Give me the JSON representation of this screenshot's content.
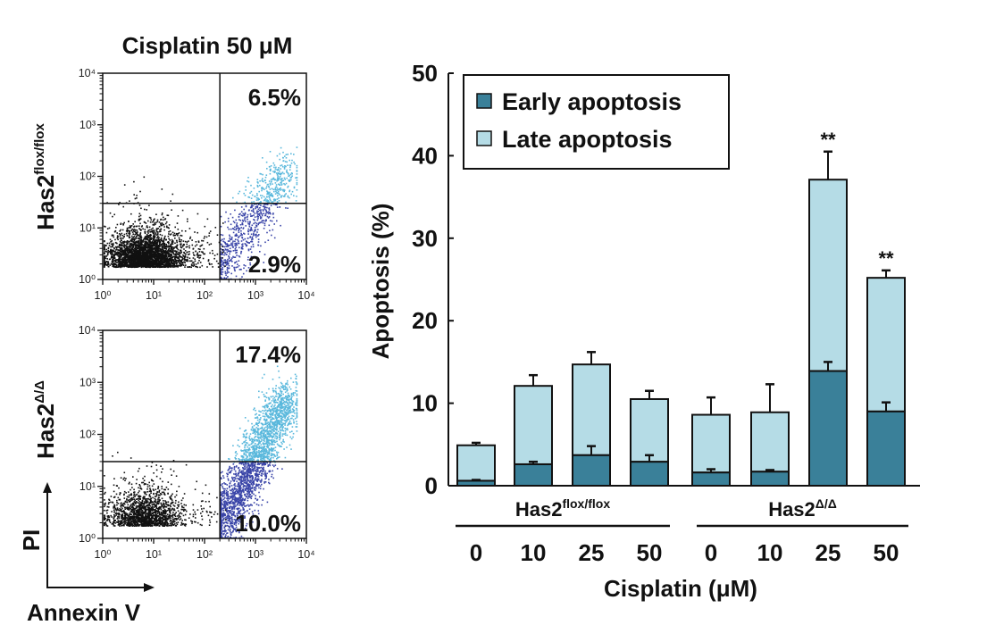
{
  "chart_data": [
    {
      "type": "scatter",
      "title": "Cisplatin 50 μM",
      "panel": "flow-cytometry",
      "xlabel": "Annexin V",
      "ylabel": "PI",
      "x_scale": "log",
      "y_scale": "log",
      "xlim": [
        1,
        10000
      ],
      "ylim": [
        1,
        10000
      ],
      "xticks": [
        "10⁰",
        "10¹",
        "10²",
        "10³",
        "10⁴"
      ],
      "yticks": [
        "10⁰",
        "10¹",
        "10²",
        "10³",
        "10⁴"
      ],
      "gate_x": 200,
      "gate_y": 30,
      "plots": [
        {
          "genotype_base": "Has2",
          "genotype_sup": "flox/flox",
          "upper_right_pct": "6.5%",
          "lower_right_pct": "2.9%",
          "spread": 0.9
        },
        {
          "genotype_base": "Has2",
          "genotype_sup": "Δ/Δ",
          "upper_right_pct": "17.4%",
          "lower_right_pct": "10.0%",
          "spread": 1.15
        }
      ],
      "colors": {
        "live": "#111111",
        "early": "#3a45a8",
        "late": "#5ab8dc"
      }
    },
    {
      "type": "bar",
      "stacked": true,
      "ylabel": "Apoptosis (%)",
      "xlabel": "Cisplatin (μM)",
      "ylim": [
        0,
        50
      ],
      "yticks": [
        0,
        10,
        20,
        30,
        40,
        50
      ],
      "legend_position": "top-left",
      "categories": [
        "0",
        "10",
        "25",
        "50",
        "0",
        "10",
        "25",
        "50"
      ],
      "groups": [
        {
          "base": "Has2",
          "sup": "flox/flox",
          "indices": [
            0,
            1,
            2,
            3
          ]
        },
        {
          "base": "Has2",
          "sup": "Δ/Δ",
          "indices": [
            4,
            5,
            6,
            7
          ]
        }
      ],
      "series": [
        {
          "name": "Early apoptosis",
          "color": "#3a8099",
          "values": [
            0.6,
            2.6,
            3.7,
            2.9,
            1.6,
            1.7,
            13.9,
            9.0
          ],
          "err": [
            0.1,
            0.3,
            1.1,
            0.8,
            0.4,
            0.2,
            1.1,
            1.1
          ]
        },
        {
          "name": "Late apoptosis",
          "color": "#b5dce6",
          "values": [
            4.3,
            9.5,
            11.0,
            7.6,
            7.0,
            7.2,
            23.2,
            16.2
          ],
          "err": [
            0.3,
            1.3,
            1.5,
            1.0,
            2.1,
            3.4,
            3.4,
            0.9
          ]
        }
      ],
      "totals": [
        4.9,
        12.1,
        14.7,
        10.5,
        8.6,
        8.9,
        37.1,
        25.2
      ],
      "annotations": [
        "",
        "",
        "",
        "",
        "",
        "",
        "**",
        "**"
      ]
    }
  ]
}
